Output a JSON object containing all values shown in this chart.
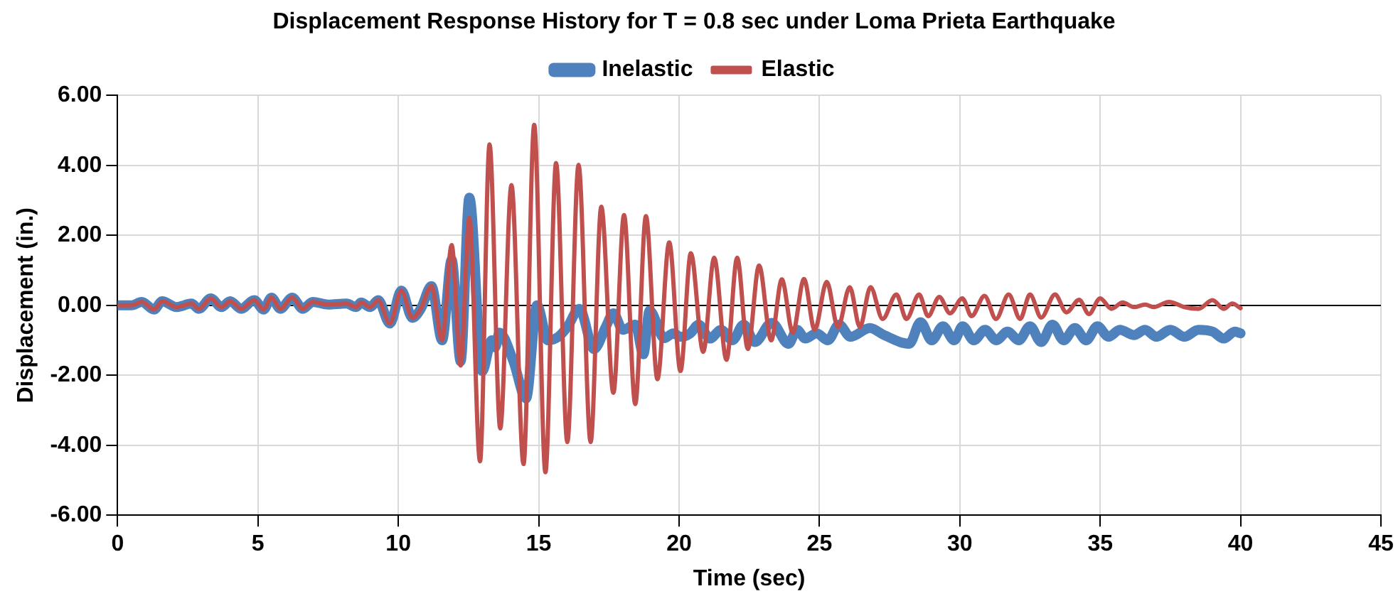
{
  "chart_data": {
    "type": "line",
    "title": "Displacement Response History for T = 0.8 sec under Loma Prieta Earthquake",
    "xlabel": "Time (sec)",
    "ylabel": "Displacement (in.)",
    "legend": "top",
    "grid": true,
    "marker": "none",
    "line_style": "solid",
    "xlim": [
      0,
      45
    ],
    "xticks": [
      0,
      5,
      10,
      15,
      20,
      25,
      30,
      35,
      40,
      45
    ],
    "ylim": [
      -6,
      6
    ],
    "yticks": [
      {
        "value": -6,
        "label": "-6.00"
      },
      {
        "value": -4,
        "label": "-4.00"
      },
      {
        "value": -2,
        "label": "-2.00"
      },
      {
        "value": 0,
        "label": "0.00"
      },
      {
        "value": 2,
        "label": "2.00"
      },
      {
        "value": 4,
        "label": "4.00"
      },
      {
        "value": 6,
        "label": "6.00"
      }
    ],
    "series": [
      {
        "name": "Inelastic",
        "color": "#4f81bd",
        "x": [
          0,
          0.5,
          0.86,
          1.3,
          1.59,
          2.1,
          2.63,
          2.9,
          3.32,
          3.7,
          4.01,
          4.4,
          4.87,
          5.2,
          5.48,
          5.8,
          6.22,
          6.6,
          6.95,
          7.5,
          8.15,
          8.5,
          8.67,
          9.0,
          9.28,
          9.7,
          10.11,
          10.5,
          10.8,
          11.18,
          11.56,
          11.9,
          12.22,
          12.53,
          12.99,
          13.33,
          13.45,
          13.6,
          14.1,
          14.55,
          14.94,
          15.33,
          15.7,
          16.02,
          16.45,
          16.97,
          17.4,
          17.66,
          18.0,
          18.44,
          18.73,
          18.95,
          19.47,
          19.8,
          20.05,
          20.4,
          20.7,
          21.1,
          21.5,
          21.9,
          22.3,
          22.7,
          23.3,
          23.9,
          24.2,
          24.5,
          24.9,
          25.3,
          25.7,
          26.1,
          26.8,
          27.3,
          28.2,
          28.6,
          29.0,
          29.4,
          29.8,
          30.1,
          30.5,
          30.9,
          31.3,
          31.7,
          32.1,
          32.5,
          32.9,
          33.3,
          33.7,
          34.1,
          34.5,
          34.9,
          35.3,
          35.7,
          36.2,
          36.6,
          37.0,
          37.5,
          38.0,
          38.5,
          39.0,
          39.4,
          39.8,
          40.0
        ],
        "values": [
          0,
          0,
          0.1,
          -0.12,
          0.12,
          -0.05,
          0.05,
          -0.1,
          0.2,
          -0.05,
          0.12,
          -0.1,
          0.15,
          -0.12,
          0.22,
          -0.1,
          0.22,
          -0.1,
          0.1,
          0.02,
          0.05,
          -0.05,
          0.08,
          -0.05,
          0.15,
          -0.52,
          0.42,
          -0.36,
          -0.1,
          0.55,
          -1.0,
          1.3,
          -1.6,
          3.08,
          -1.88,
          -1.0,
          -1.2,
          -0.78,
          -1.6,
          -2.66,
          0.0,
          -1.0,
          -0.9,
          -0.62,
          -0.1,
          -1.25,
          -0.6,
          -0.23,
          -0.7,
          -0.55,
          -1.4,
          -0.15,
          -0.94,
          -0.8,
          -0.9,
          -0.8,
          -0.55,
          -0.95,
          -0.7,
          -1.0,
          -0.55,
          -1.05,
          -0.5,
          -1.1,
          -0.7,
          -0.95,
          -0.8,
          -1.0,
          -0.55,
          -0.9,
          -0.65,
          -0.85,
          -1.1,
          -0.48,
          -1.0,
          -0.6,
          -1.0,
          -0.6,
          -1.0,
          -0.7,
          -1.0,
          -0.75,
          -1.0,
          -0.6,
          -1.05,
          -0.55,
          -1.0,
          -0.65,
          -1.0,
          -0.6,
          -0.9,
          -0.7,
          -0.85,
          -0.7,
          -0.9,
          -0.7,
          -0.9,
          -0.7,
          -0.75,
          -0.95,
          -0.75,
          -0.8
        ]
      },
      {
        "name": "Elastic",
        "color": "#c0504d",
        "x": [
          0,
          0.5,
          0.86,
          1.3,
          1.59,
          2.1,
          2.63,
          2.9,
          3.32,
          3.7,
          4.01,
          4.4,
          4.87,
          5.2,
          5.48,
          5.8,
          6.22,
          6.6,
          6.95,
          7.5,
          8.15,
          8.5,
          8.67,
          9.0,
          9.28,
          9.7,
          10.11,
          10.5,
          10.8,
          11.18,
          11.56,
          11.9,
          12.22,
          12.53,
          12.91,
          13.25,
          13.63,
          14.03,
          14.46,
          14.84,
          15.24,
          15.62,
          16.02,
          16.42,
          16.85,
          17.23,
          17.66,
          18.04,
          18.44,
          18.82,
          19.23,
          19.65,
          20.05,
          20.42,
          20.86,
          21.25,
          21.69,
          22.07,
          22.45,
          22.85,
          23.28,
          23.66,
          24.05,
          24.45,
          24.83,
          25.26,
          25.66,
          26.08,
          26.44,
          26.82,
          27.25,
          27.74,
          28.1,
          28.55,
          28.87,
          29.27,
          29.65,
          30.09,
          30.42,
          30.88,
          31.29,
          31.74,
          32.15,
          32.5,
          32.9,
          33.39,
          33.8,
          34.25,
          34.6,
          35.0,
          35.4,
          35.8,
          36.2,
          36.6,
          36.9,
          37.45,
          38.0,
          38.5,
          39.0,
          39.4,
          39.7,
          40.0
        ],
        "values": [
          0,
          0,
          0.1,
          -0.12,
          0.12,
          -0.05,
          0.05,
          -0.1,
          0.2,
          -0.05,
          0.12,
          -0.1,
          0.15,
          -0.12,
          0.22,
          -0.1,
          0.22,
          -0.1,
          0.1,
          0.02,
          0.05,
          -0.05,
          0.08,
          -0.05,
          0.15,
          -0.52,
          0.42,
          -0.36,
          -0.1,
          0.55,
          -1.0,
          1.72,
          -1.72,
          2.5,
          -4.46,
          4.6,
          -3.52,
          3.44,
          -4.54,
          5.16,
          -4.77,
          4.07,
          -3.91,
          4.02,
          -3.91,
          2.82,
          -2.5,
          2.58,
          -2.82,
          2.55,
          -2.11,
          1.8,
          -1.88,
          1.49,
          -1.33,
          1.36,
          -1.56,
          1.36,
          -1.25,
          1.14,
          -1.0,
          0.74,
          -0.78,
          0.75,
          -0.7,
          0.67,
          -0.62,
          0.52,
          -0.62,
          0.52,
          -0.39,
          0.31,
          -0.39,
          0.31,
          -0.31,
          0.24,
          -0.23,
          0.2,
          -0.31,
          0.27,
          -0.39,
          0.31,
          -0.39,
          0.31,
          -0.35,
          0.31,
          -0.2,
          0.16,
          -0.25,
          0.2,
          -0.1,
          0.08,
          -0.05,
          0.02,
          -0.05,
          0.1,
          -0.05,
          -0.1,
          0.15,
          -0.1,
          0.05,
          -0.08
        ]
      }
    ]
  }
}
